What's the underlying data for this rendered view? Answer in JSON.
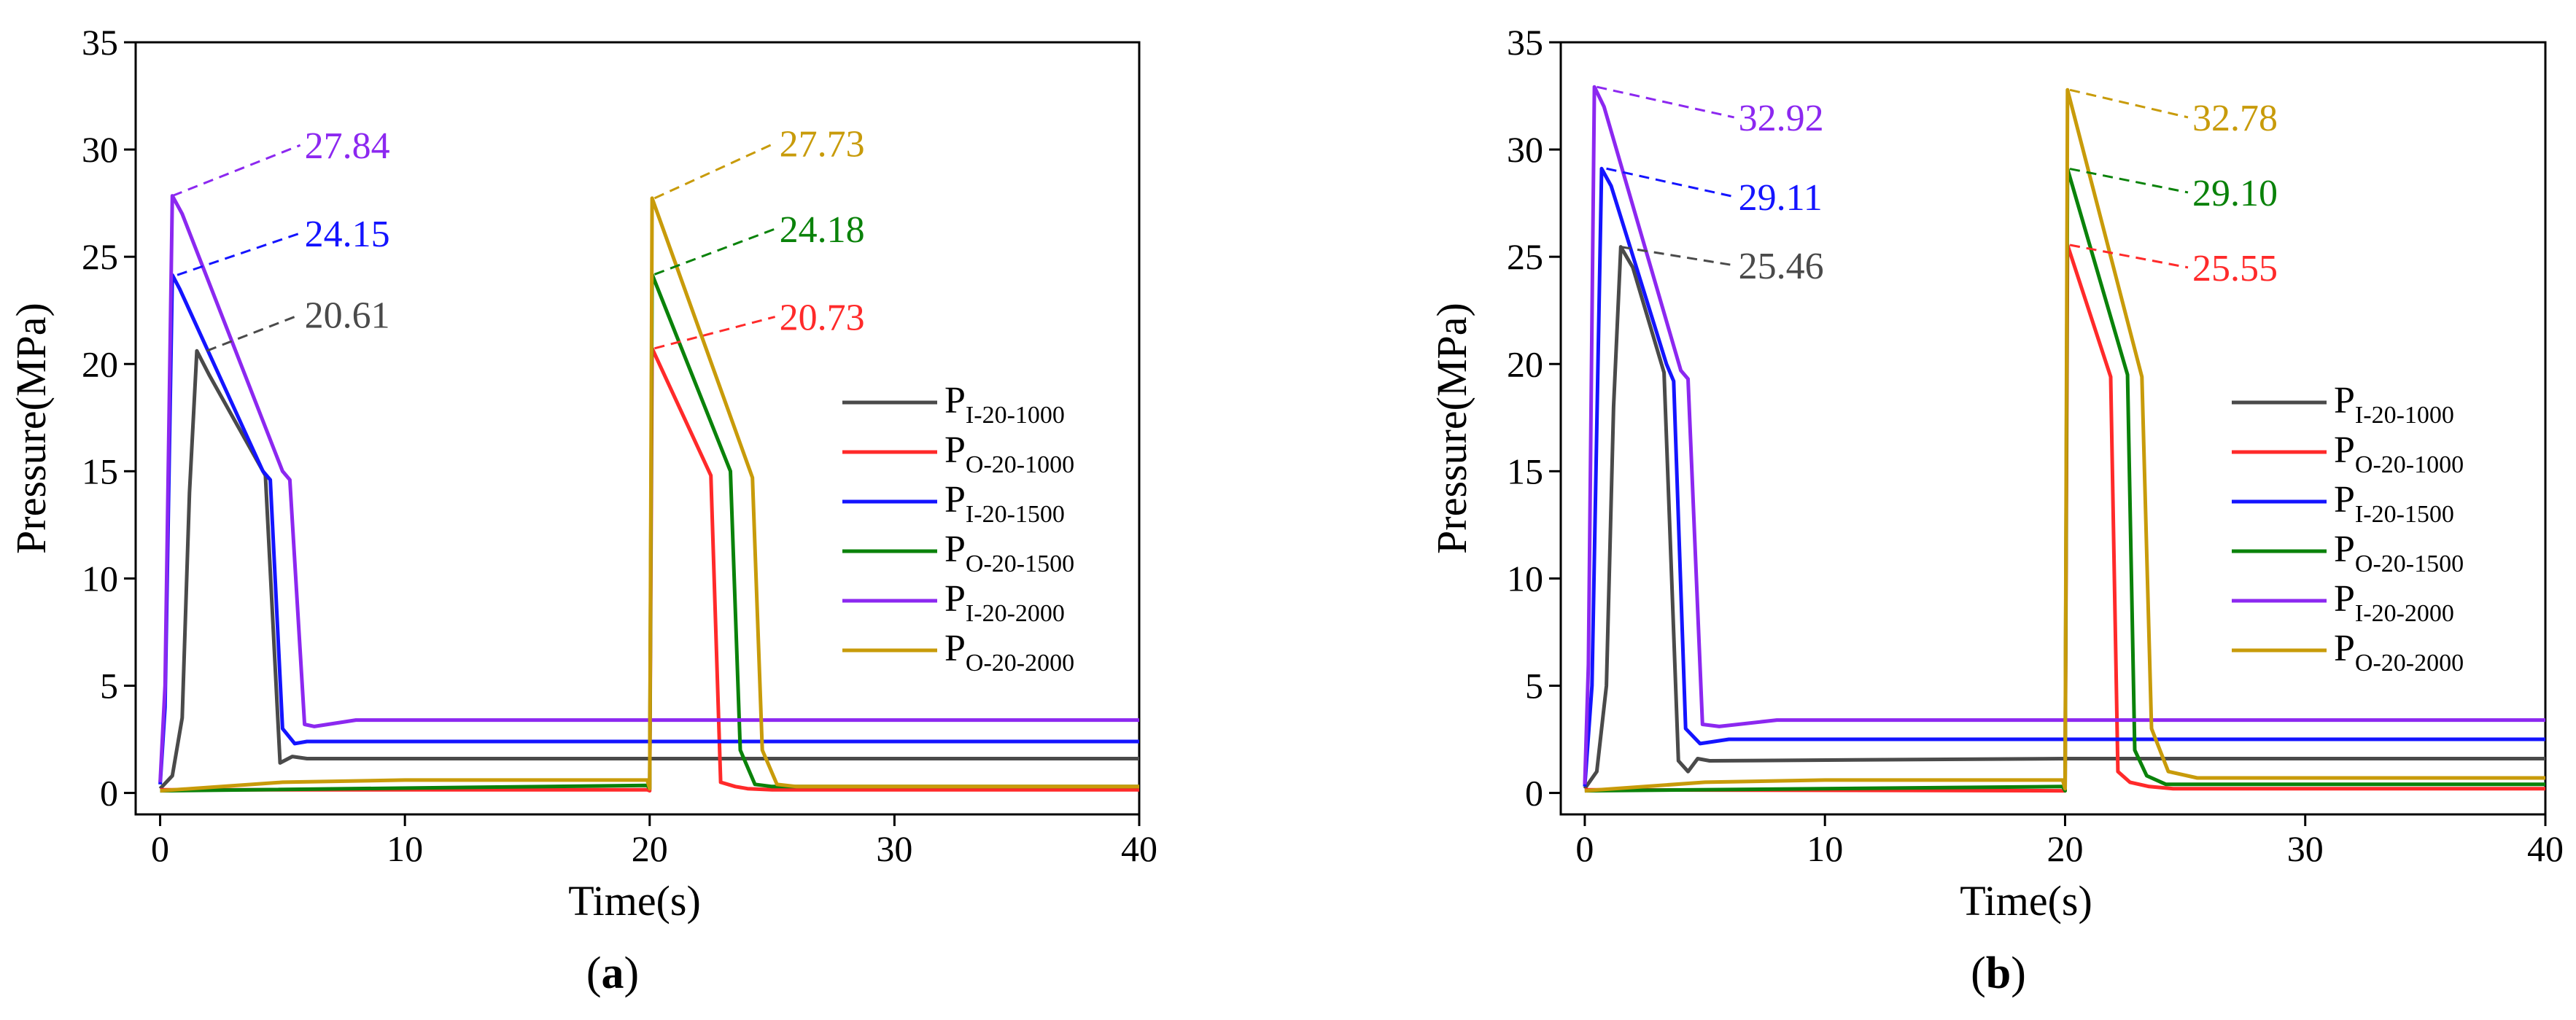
{
  "colors": {
    "I-1000": "#4a4a4a",
    "O-1000": "#ff2a2a",
    "I-1500": "#1414ff",
    "O-1500": "#0a820a",
    "I-2000": "#8c28f0",
    "O-2000": "#c89b0a"
  },
  "chart_data": [
    {
      "type": "line",
      "panel": "a",
      "panel_label_open": "(",
      "panel_label_letter": "a",
      "panel_label_close": ")",
      "xlabel": "Time(s)",
      "ylabel": "Pressure(MPa)",
      "xlim": [
        -1,
        40
      ],
      "ylim": [
        -1,
        35
      ],
      "xticks": [
        0,
        10,
        20,
        30,
        40
      ],
      "xtick_labels": [
        "0",
        "10",
        "20",
        "30",
        "40"
      ],
      "yticks": [
        0,
        5,
        10,
        15,
        20,
        25,
        30,
        35
      ],
      "ytick_labels": [
        "0",
        "5",
        "10",
        "15",
        "20",
        "25",
        "30",
        "35"
      ],
      "legend_position": "center-right",
      "legend": [
        {
          "main": "P",
          "sub": "I-20-1000",
          "key": "I-1000"
        },
        {
          "main": "P",
          "sub": "O-20-1000",
          "key": "O-1000"
        },
        {
          "main": "P",
          "sub": "I-20-1500",
          "key": "I-1500"
        },
        {
          "main": "P",
          "sub": "O-20-1500",
          "key": "O-1500"
        },
        {
          "main": "P",
          "sub": "I-20-2000",
          "key": "I-2000"
        },
        {
          "main": "P",
          "sub": "O-20-2000",
          "key": "O-2000"
        }
      ],
      "series": [
        {
          "name": "PI-20-1000",
          "key": "I-1000",
          "x": [
            0,
            0.5,
            0.9,
            1.2,
            1.5,
            2.0,
            4.3,
            4.9,
            5.4,
            6,
            20,
            40
          ],
          "y": [
            0.2,
            0.8,
            3.5,
            14,
            20.61,
            19.5,
            14.8,
            1.4,
            1.7,
            1.6,
            1.6,
            1.6
          ]
        },
        {
          "name": "PO-20-1000",
          "key": "O-1000",
          "x": [
            0,
            19.9,
            20.0,
            20.1,
            22.5,
            22.9,
            23.5,
            24,
            25,
            40
          ],
          "y": [
            0.15,
            0.15,
            0.1,
            20.73,
            14.8,
            0.5,
            0.3,
            0.2,
            0.15,
            0.15
          ]
        },
        {
          "name": "PI-20-1500",
          "key": "I-1500",
          "x": [
            0,
            0.2,
            0.5,
            0.8,
            4.2,
            4.5,
            5.0,
            5.5,
            6,
            20,
            40
          ],
          "y": [
            0.4,
            4,
            24.15,
            23.5,
            15,
            14.6,
            3,
            2.3,
            2.4,
            2.4,
            2.4
          ]
        },
        {
          "name": "PO-20-1500",
          "key": "O-1500",
          "x": [
            0,
            19.9,
            20.0,
            20.1,
            23.3,
            23.7,
            24.3,
            25,
            26,
            40
          ],
          "y": [
            0.1,
            0.35,
            0.2,
            24.18,
            15,
            2,
            0.4,
            0.3,
            0.3,
            0.3
          ]
        },
        {
          "name": "PI-20-2000",
          "key": "I-2000",
          "x": [
            0,
            0.2,
            0.5,
            0.9,
            5.0,
            5.3,
            5.9,
            6.3,
            8,
            20,
            40
          ],
          "y": [
            0.5,
            5,
            27.84,
            27,
            15,
            14.6,
            3.2,
            3.1,
            3.4,
            3.4,
            3.4
          ]
        },
        {
          "name": "PO-20-2000",
          "key": "O-2000",
          "x": [
            0,
            5,
            10,
            19.9,
            20.0,
            20.1,
            24.2,
            24.6,
            25.2,
            26,
            40
          ],
          "y": [
            0.1,
            0.5,
            0.6,
            0.6,
            0.2,
            27.73,
            14.7,
            2,
            0.4,
            0.3,
            0.3
          ]
        }
      ],
      "annotations": [
        {
          "text": "27.84",
          "key": "I-2000",
          "at": [
            0.5,
            27.84
          ],
          "to": [
            5.9,
            30.2
          ]
        },
        {
          "text": "24.15",
          "key": "I-1500",
          "at": [
            0.7,
            24.15
          ],
          "to": [
            5.9,
            26.1
          ]
        },
        {
          "text": "20.61",
          "key": "I-1000",
          "at": [
            1.9,
            20.61
          ],
          "to": [
            5.9,
            22.3
          ]
        },
        {
          "text": "27.73",
          "key": "O-2000",
          "at": [
            20.2,
            27.73
          ],
          "to": [
            25.3,
            30.3
          ]
        },
        {
          "text": "24.18",
          "key": "O-1500",
          "at": [
            20.2,
            24.18
          ],
          "to": [
            25.3,
            26.3
          ]
        },
        {
          "text": "20.73",
          "key": "O-1000",
          "at": [
            20.2,
            20.73
          ],
          "to": [
            25.3,
            22.2
          ]
        }
      ]
    },
    {
      "type": "line",
      "panel": "b",
      "panel_label_open": "(",
      "panel_label_letter": "b",
      "panel_label_close": ")",
      "xlabel": "Time(s)",
      "ylabel": "Pressure(MPa)",
      "xlim": [
        -1,
        40
      ],
      "ylim": [
        -1,
        35
      ],
      "xticks": [
        0,
        10,
        20,
        30,
        40
      ],
      "xtick_labels": [
        "0",
        "10",
        "20",
        "30",
        "40"
      ],
      "yticks": [
        0,
        5,
        10,
        15,
        20,
        25,
        30,
        35
      ],
      "ytick_labels": [
        "0",
        "5",
        "10",
        "15",
        "20",
        "25",
        "30",
        "35"
      ],
      "legend_position": "center-right",
      "legend": [
        {
          "main": "P",
          "sub": "I-20-1000",
          "key": "I-1000"
        },
        {
          "main": "P",
          "sub": "O-20-1000",
          "key": "O-1000"
        },
        {
          "main": "P",
          "sub": "I-20-1500",
          "key": "I-1500"
        },
        {
          "main": "P",
          "sub": "O-20-1500",
          "key": "O-1500"
        },
        {
          "main": "P",
          "sub": "I-20-2000",
          "key": "I-2000"
        },
        {
          "main": "P",
          "sub": "O-20-2000",
          "key": "O-2000"
        }
      ],
      "series": [
        {
          "name": "PI-20-1000",
          "key": "I-1000",
          "x": [
            0,
            0.5,
            0.9,
            1.2,
            1.5,
            2.0,
            3.3,
            3.9,
            4.3,
            4.7,
            5.2,
            20,
            40
          ],
          "y": [
            0.2,
            1,
            5,
            18,
            25.46,
            24.5,
            19.6,
            1.5,
            1.0,
            1.6,
            1.5,
            1.6,
            1.6
          ]
        },
        {
          "name": "PO-20-1000",
          "key": "O-1000",
          "x": [
            0,
            19.9,
            20.0,
            20.1,
            21.9,
            22.2,
            22.7,
            23.5,
            24.5,
            40
          ],
          "y": [
            0.15,
            0.1,
            0.1,
            25.55,
            19.4,
            1,
            0.5,
            0.3,
            0.2,
            0.2
          ]
        },
        {
          "name": "PI-20-1500",
          "key": "I-1500",
          "x": [
            0,
            0.3,
            0.7,
            1.1,
            3.4,
            3.7,
            4.2,
            4.8,
            6,
            20,
            40
          ],
          "y": [
            0.3,
            5,
            29.11,
            28.3,
            20,
            19.2,
            3,
            2.3,
            2.5,
            2.5,
            2.5
          ]
        },
        {
          "name": "PO-20-1500",
          "key": "O-1500",
          "x": [
            0,
            19.9,
            20.0,
            20.1,
            22.6,
            22.9,
            23.4,
            24.2,
            25.5,
            40
          ],
          "y": [
            0.1,
            0.3,
            0.1,
            29.1,
            19.5,
            2,
            0.8,
            0.4,
            0.4,
            0.4
          ]
        },
        {
          "name": "PI-20-2000",
          "key": "I-2000",
          "x": [
            0,
            0.15,
            0.4,
            0.8,
            4.0,
            4.3,
            4.9,
            5.6,
            8,
            20,
            40
          ],
          "y": [
            0.4,
            6,
            32.92,
            32,
            19.7,
            19.3,
            3.2,
            3.1,
            3.4,
            3.4,
            3.4
          ]
        },
        {
          "name": "PO-20-2000",
          "key": "O-2000",
          "x": [
            0,
            5,
            10,
            19.9,
            20.0,
            20.1,
            23.2,
            23.6,
            24.3,
            25.5,
            40
          ],
          "y": [
            0.1,
            0.5,
            0.6,
            0.6,
            0.2,
            32.78,
            19.4,
            3,
            1,
            0.7,
            0.7
          ]
        }
      ],
      "annotations": [
        {
          "text": "32.92",
          "key": "I-2000",
          "at": [
            0.5,
            32.92
          ],
          "to": [
            6.4,
            31.5
          ]
        },
        {
          "text": "29.11",
          "key": "I-1500",
          "at": [
            0.9,
            29.11
          ],
          "to": [
            6.4,
            27.8
          ]
        },
        {
          "text": "25.46",
          "key": "I-1000",
          "at": [
            1.5,
            25.46
          ],
          "to": [
            6.4,
            24.6
          ]
        },
        {
          "text": "32.78",
          "key": "O-2000",
          "at": [
            20.2,
            32.78
          ],
          "to": [
            25.3,
            31.5
          ]
        },
        {
          "text": "29.10",
          "key": "O-1500",
          "at": [
            20.2,
            29.1
          ],
          "to": [
            25.3,
            28.0
          ]
        },
        {
          "text": "25.55",
          "key": "O-1000",
          "at": [
            20.2,
            25.55
          ],
          "to": [
            25.3,
            24.5
          ]
        }
      ]
    }
  ]
}
